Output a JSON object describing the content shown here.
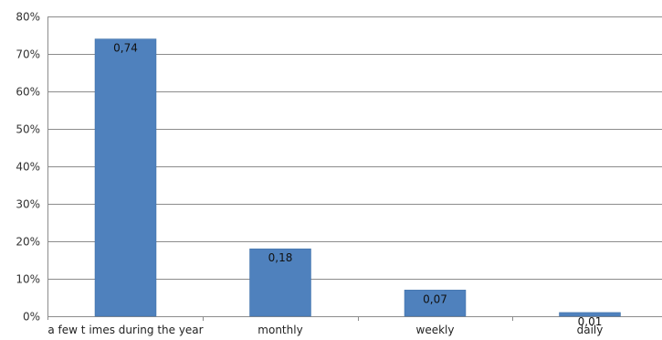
{
  "chart_data": {
    "type": "bar",
    "categories": [
      "a few t imes during the year",
      "monthly",
      "weekly",
      "daily"
    ],
    "values": [
      0.74,
      0.18,
      0.07,
      0.01
    ],
    "data_labels": [
      "0,74",
      "0,18",
      "0,07",
      "0,01"
    ],
    "y_ticks": [
      0,
      0.1,
      0.2,
      0.3,
      0.4,
      0.5,
      0.6,
      0.7,
      0.8
    ],
    "y_tick_labels": [
      "0%",
      "10%",
      "20%",
      "30%",
      "40%",
      "50%",
      "60%",
      "70%",
      "80%"
    ],
    "ylim": [
      0,
      0.8
    ],
    "grid": true,
    "legend": "none",
    "title": "",
    "xlabel": "",
    "ylabel": "",
    "colors": {
      "bar": "#4f81bd",
      "bar_edge": "#3c6ea5",
      "grid": "#8c8c8c"
    }
  }
}
